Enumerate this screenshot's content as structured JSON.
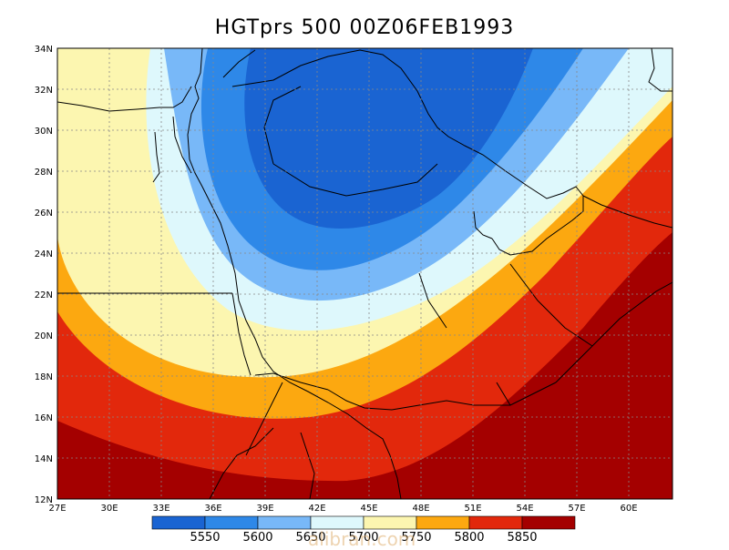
{
  "title": "HGTprs 500 00Z06FEB1993",
  "lon_labels": [
    "27E",
    "30E",
    "33E",
    "36E",
    "39E",
    "42E",
    "45E",
    "48E",
    "51E",
    "54E",
    "57E",
    "60E"
  ],
  "lat_labels": [
    "12N",
    "14N",
    "16N",
    "18N",
    "20N",
    "22N",
    "24N",
    "26N",
    "28N",
    "30N",
    "32N",
    "34N"
  ],
  "colorbar": {
    "colors": [
      "#1a64d2",
      "#2e88e8",
      "#78b8f8",
      "#def8fc",
      "#fcf6b0",
      "#fca810",
      "#e2280c",
      "#a40000"
    ],
    "labels": [
      "5550",
      "5600",
      "5650",
      "5700",
      "5750",
      "5800",
      "5850"
    ]
  },
  "watermark": "alibran.com"
}
